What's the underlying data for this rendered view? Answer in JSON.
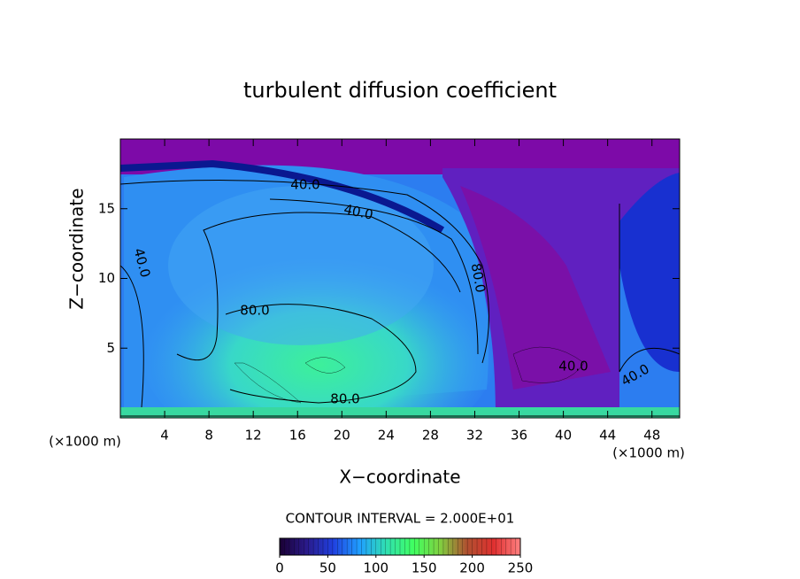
{
  "chart_data": {
    "type": "contour",
    "title": "turbulent diffusion coefficient",
    "x_label": "X−coordinate",
    "y_label": "Z−coordinate",
    "x_unit": "(×1000 m)",
    "y_unit": "(×1000 m)",
    "xlim": [
      0,
      50.5
    ],
    "xticks": [
      4,
      8,
      12,
      16,
      20,
      24,
      28,
      32,
      36,
      40,
      44,
      48
    ],
    "ylim": [
      0,
      20
    ],
    "yticks": [
      5,
      10,
      15
    ],
    "contour_labels": [
      "40.0",
      "40.0",
      "40.0",
      "80.0",
      "80.0",
      "80.0",
      "40.0",
      "40.0"
    ],
    "contour_interval": "CONTOUR INTERVAL = 2.000E+01",
    "clim": [
      0,
      250
    ],
    "cticks": [
      0,
      50,
      100,
      150,
      200,
      250
    ],
    "colormap": [
      "#1a0033",
      "#2a1a8a",
      "#2040e0",
      "#20a0ff",
      "#30e0b0",
      "#40ff60",
      "#80d040",
      "#b05030",
      "#e03030",
      "#ff8080"
    ]
  }
}
